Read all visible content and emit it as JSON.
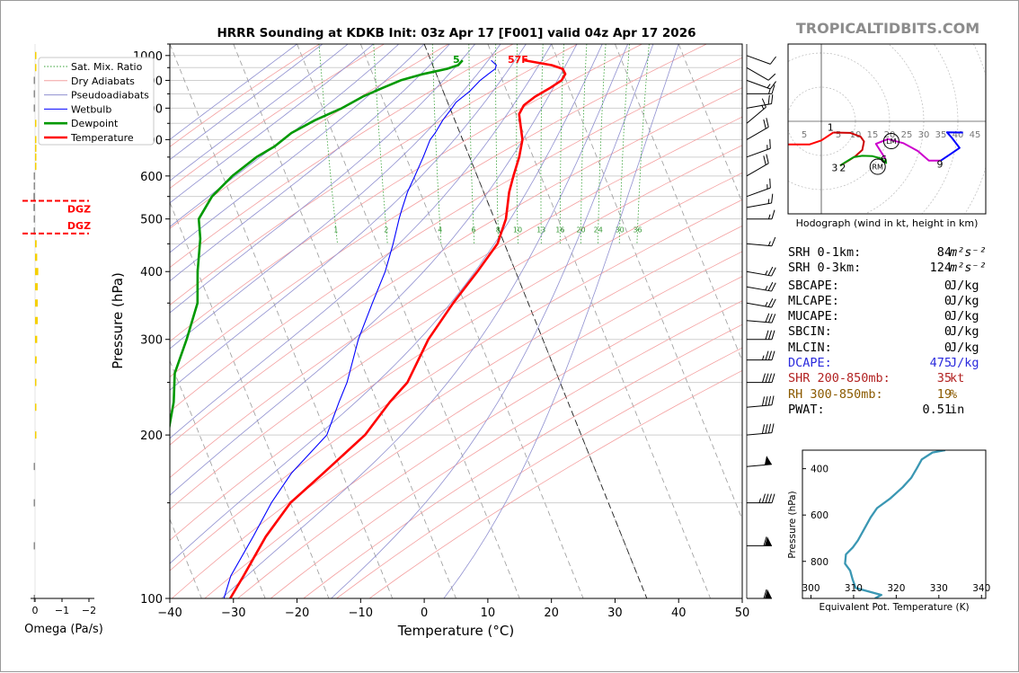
{
  "title": "HRRR Sounding at KDKB Init: 03z Apr 17 [F001] valid 04z Apr 17 2026",
  "watermark": "TROPICALTIDBITS.COM",
  "skewt": {
    "xlabel": "Temperature (°C)",
    "ylabel": "Pressure (hPa)",
    "xlim": [
      -40,
      50
    ],
    "ylim": [
      1050,
      100
    ],
    "x_ticks": [
      "−40",
      "−30",
      "−20",
      "−10",
      "0",
      "10",
      "20",
      "30",
      "40",
      "50"
    ],
    "y_ticks": [
      "100",
      "200",
      "300",
      "400",
      "500",
      "600",
      "700",
      "800",
      "900",
      "1000"
    ],
    "mixing_ratio_labels": [
      "1",
      "2",
      "4",
      "6",
      "8",
      "10",
      "13",
      "16",
      "20",
      "24",
      "30",
      "36"
    ],
    "surface_dewpoint_label": "5",
    "surface_temp_label": "57F",
    "legend": [
      "Sat. Mix. Ratio",
      "Dry Adiabats",
      "Pseudoadiabats",
      "Wetbulb",
      "Dewpoint",
      "Temperature"
    ],
    "colors": {
      "temperature": "#ff0000",
      "dewpoint": "#009900",
      "wetbulb": "#0000ff",
      "dry_adiabat": "#f4a0a0",
      "pseudoadiabat": "#9090d0",
      "mixing_ratio": "#33a033"
    }
  },
  "chart_data": [
    {
      "type": "line",
      "title": "HRRR Sounding at KDKB Init: 03z Apr 17 [F001] valid 04z Apr 17 2026",
      "xlabel": "Temperature (°C)",
      "ylabel": "Pressure (hPa)",
      "series": [
        {
          "name": "Temperature",
          "points": [
            [
              980,
              14.7
            ],
            [
              960,
              18.7
            ],
            [
              945,
              20.2
            ],
            [
              925,
              20.3
            ],
            [
              900,
              19.3
            ],
            [
              870,
              16.9
            ],
            [
              840,
              14.1
            ],
            [
              810,
              11.8
            ],
            [
              780,
              10.5
            ],
            [
              700,
              9.4
            ],
            [
              650,
              7.8
            ],
            [
              600,
              5.7
            ],
            [
              560,
              4.0
            ],
            [
              500,
              1.8
            ],
            [
              450,
              -1.1
            ],
            [
              400,
              -6.0
            ],
            [
              350,
              -11.8
            ],
            [
              300,
              -18.0
            ],
            [
              250,
              -24.0
            ],
            [
              230,
              -28.0
            ],
            [
              200,
              -34.0
            ],
            [
              170,
              -43.0
            ],
            [
              150,
              -50.0
            ],
            [
              130,
              -56.0
            ],
            [
              110,
              -62.0
            ],
            [
              100,
              -65.5
            ]
          ]
        },
        {
          "name": "Dewpoint",
          "points": [
            [
              980,
              5.0
            ],
            [
              960,
              4.0
            ],
            [
              945,
              2.0
            ],
            [
              925,
              -2.0
            ],
            [
              900,
              -6.0
            ],
            [
              870,
              -9.5
            ],
            [
              840,
              -13.0
            ],
            [
              800,
              -17.0
            ],
            [
              760,
              -22.0
            ],
            [
              720,
              -26.5
            ],
            [
              680,
              -30.0
            ],
            [
              650,
              -33.5
            ],
            [
              600,
              -38.5
            ],
            [
              550,
              -43.0
            ],
            [
              500,
              -46.5
            ],
            [
              460,
              -47.5
            ],
            [
              400,
              -50.0
            ],
            [
              350,
              -52.0
            ],
            [
              300,
              -56.0
            ],
            [
              260,
              -60.0
            ],
            [
              230,
              -62.0
            ],
            [
              200,
              -65.0
            ],
            [
              170,
              -70.0
            ],
            [
              150,
              -75.0
            ],
            [
              130,
              -80.0
            ],
            [
              120,
              -82.0
            ],
            [
              110,
              -81.0
            ],
            [
              100,
              -80.0
            ]
          ]
        },
        {
          "name": "Wetbulb",
          "points": [
            [
              980,
              9.5
            ],
            [
              960,
              10.0
            ],
            [
              945,
              9.6
            ],
            [
              925,
              8.2
            ],
            [
              900,
              6.5
            ],
            [
              860,
              4.2
            ],
            [
              820,
              1.3
            ],
            [
              800,
              0.3
            ],
            [
              760,
              -1.9
            ],
            [
              720,
              -3.9
            ],
            [
              700,
              -5.1
            ],
            [
              650,
              -7.3
            ],
            [
              600,
              -9.8
            ],
            [
              560,
              -12.0
            ],
            [
              520,
              -14.0
            ],
            [
              500,
              -15.0
            ],
            [
              450,
              -17.5
            ],
            [
              400,
              -20.5
            ],
            [
              350,
              -24.5
            ],
            [
              300,
              -29.0
            ],
            [
              250,
              -33.5
            ],
            [
              230,
              -36.0
            ],
            [
              200,
              -40.0
            ],
            [
              170,
              -48.0
            ],
            [
              150,
              -53.0
            ],
            [
              130,
              -58.0
            ],
            [
              110,
              -64.0
            ],
            [
              100,
              -66.5
            ]
          ]
        }
      ]
    },
    {
      "type": "bar",
      "xlabel": "Omega (Pa/s)",
      "x_ticks": [
        "0",
        "−1",
        "−2"
      ],
      "xlim": [
        0,
        -2
      ],
      "dgz_label": "DGZ",
      "dgz_top_label": "DGZ",
      "dgz_bottom_label": "DGZ",
      "dgz_pressures": [
        470,
        540
      ],
      "profile": [
        {
          "p": 100,
          "omega": 0.03
        },
        {
          "p": 125,
          "omega": 0.03
        },
        {
          "p": 150,
          "omega": 0.02
        },
        {
          "p": 175,
          "omega": 0.03
        },
        {
          "p": 200,
          "omega": -0.02
        },
        {
          "p": 225,
          "omega": -0.04
        },
        {
          "p": 250,
          "omega": -0.05
        },
        {
          "p": 275,
          "omega": -0.06
        },
        {
          "p": 300,
          "omega": -0.08
        },
        {
          "p": 325,
          "omega": -0.1
        },
        {
          "p": 350,
          "omega": -0.1
        },
        {
          "p": 375,
          "omega": -0.1
        },
        {
          "p": 400,
          "omega": -0.12
        },
        {
          "p": 425,
          "omega": -0.08
        },
        {
          "p": 450,
          "omega": -0.06
        },
        {
          "p": 475,
          "omega": 0.02
        },
        {
          "p": 500,
          "omega": 0.04
        },
        {
          "p": 525,
          "omega": 0.06
        },
        {
          "p": 550,
          "omega": 0.06
        },
        {
          "p": 575,
          "omega": 0.04
        },
        {
          "p": 600,
          "omega": 0.03
        },
        {
          "p": 625,
          "omega": -0.01
        },
        {
          "p": 650,
          "omega": -0.02
        },
        {
          "p": 675,
          "omega": -0.03
        },
        {
          "p": 700,
          "omega": -0.02
        },
        {
          "p": 750,
          "omega": -0.01
        },
        {
          "p": 800,
          "omega": 0.01
        },
        {
          "p": 850,
          "omega": 0.02
        },
        {
          "p": 900,
          "omega": 0.02
        },
        {
          "p": 950,
          "omega": -0.01
        },
        {
          "p": 1000,
          "omega": -0.01
        }
      ]
    },
    {
      "type": "line",
      "title": "",
      "xlabel": "Equivalent Pot. Temperature (K)",
      "ylabel": "Pressure (hPa)",
      "xlim": [
        298,
        341
      ],
      "ylim": [
        960,
        320
      ],
      "x_ticks": [
        "300",
        "310",
        "320",
        "330",
        "340"
      ],
      "y_ticks": [
        "400",
        "600",
        "800"
      ],
      "series": [
        {
          "name": "",
          "points": [
            [
              315,
              960
            ],
            [
              316.5,
              945
            ],
            [
              310.5,
              915
            ],
            [
              309.8,
              880
            ],
            [
              309.2,
              840
            ],
            [
              308,
              810
            ],
            [
              308.2,
              770
            ],
            [
              309.8,
              740
            ],
            [
              311,
              710
            ],
            [
              312.5,
              660
            ],
            [
              314,
              610
            ],
            [
              315.5,
              570
            ],
            [
              318.5,
              530
            ],
            [
              321.5,
              480
            ],
            [
              323.5,
              440
            ],
            [
              324.8,
              400
            ],
            [
              326,
              360
            ],
            [
              328.5,
              330
            ],
            [
              331.5,
              320
            ]
          ]
        }
      ]
    },
    {
      "type": "line",
      "xlabel": "Hodograph (wind in kt, height in km)",
      "ring_labels": [
        "5",
        "5",
        "10",
        "15",
        "20",
        "25",
        "30",
        "35",
        "40",
        "45"
      ],
      "height_labels": [
        "1",
        "2",
        "3",
        "6",
        "9"
      ],
      "storm_motion_labels": [
        "LM",
        "RM"
      ],
      "series": [
        {
          "name": "0-1km",
          "color": "#ff0000",
          "points": [
            [
              -16,
              -7.5
            ],
            [
              -10.5,
              -6.8
            ],
            [
              -3.5,
              -6.8
            ],
            [
              0,
              -5.6
            ],
            [
              3.5,
              -3.3
            ]
          ]
        },
        {
          "name": "1-3km",
          "color": "#cc0000",
          "points": [
            [
              3.5,
              -3.3
            ],
            [
              8.5,
              -3.4
            ],
            [
              11.5,
              -4.5
            ],
            [
              12.5,
              -5.9
            ],
            [
              12,
              -8.4
            ],
            [
              10,
              -10.2
            ],
            [
              8,
              -11.5
            ],
            [
              5.5,
              -13
            ]
          ]
        },
        {
          "name": "3-6km",
          "color": "#009900",
          "points": [
            [
              5.5,
              -13
            ],
            [
              7,
              -12
            ],
            [
              9.5,
              -10.5
            ],
            [
              12,
              -10.1
            ],
            [
              15,
              -10.2
            ],
            [
              17.5,
              -10.9
            ],
            [
              19,
              -12.2
            ],
            [
              18.8,
              -11
            ]
          ]
        },
        {
          "name": "6-9km",
          "color": "#cc00cc",
          "points": [
            [
              18.8,
              -11
            ],
            [
              16,
              -6.6
            ],
            [
              19.5,
              -5.2
            ],
            [
              24,
              -6.4
            ],
            [
              28.3,
              -8.7
            ],
            [
              31.5,
              -11.5
            ],
            [
              35,
              -11.5
            ]
          ]
        },
        {
          "name": "9+km",
          "color": "#0000ff",
          "points": [
            [
              35,
              -11.5
            ],
            [
              38,
              -9.5
            ],
            [
              40.5,
              -7.8
            ],
            [
              38.3,
              -4.9
            ],
            [
              36.8,
              -3.2
            ],
            [
              41.5,
              -3.3
            ]
          ]
        }
      ],
      "storm_motion": {
        "LM": [
          20.5,
          -5.8
        ],
        "RM": [
          16.5,
          -13.3
        ]
      }
    },
    {
      "type": "bar",
      "xlabel": "",
      "barbs": [
        {
          "p": 100,
          "spd": 60,
          "dir": 270
        },
        {
          "p": 125,
          "spd": 58,
          "dir": 270
        },
        {
          "p": 150,
          "spd": 45,
          "dir": 270
        },
        {
          "p": 175,
          "spd": 48,
          "dir": 265
        },
        {
          "p": 200,
          "spd": 42,
          "dir": 265
        },
        {
          "p": 225,
          "spd": 40,
          "dir": 265
        },
        {
          "p": 250,
          "spd": 38,
          "dir": 270
        },
        {
          "p": 275,
          "spd": 36,
          "dir": 270
        },
        {
          "p": 300,
          "spd": 32,
          "dir": 270
        },
        {
          "p": 325,
          "spd": 30,
          "dir": 275
        },
        {
          "p": 350,
          "spd": 25,
          "dir": 280
        },
        {
          "p": 375,
          "spd": 25,
          "dir": 280
        },
        {
          "p": 400,
          "spd": 25,
          "dir": 280
        },
        {
          "p": 450,
          "spd": 15,
          "dir": 275
        },
        {
          "p": 500,
          "spd": 15,
          "dir": 270
        },
        {
          "p": 525,
          "spd": 15,
          "dir": 260
        },
        {
          "p": 550,
          "spd": 15,
          "dir": 250
        },
        {
          "p": 600,
          "spd": 20,
          "dir": 240
        },
        {
          "p": 650,
          "spd": 15,
          "dir": 250
        },
        {
          "p": 700,
          "spd": 18,
          "dir": 240
        },
        {
          "p": 750,
          "spd": 15,
          "dir": 230
        },
        {
          "p": 800,
          "spd": 18,
          "dir": 260
        },
        {
          "p": 850,
          "spd": 15,
          "dir": 270
        },
        {
          "p": 900,
          "spd": 15,
          "dir": 290
        },
        {
          "p": 950,
          "spd": 10,
          "dir": 300
        },
        {
          "p": 1000,
          "spd": 10,
          "dir": 290
        }
      ]
    }
  ],
  "hodograph": {
    "caption": "Hodograph (wind in kt, height in km)"
  },
  "theta_e": {
    "xlabel": "Equivalent Pot. Temperature (K)",
    "ylabel": "Pressure (hPa)"
  },
  "omega": {
    "xlabel": "Omega (Pa/s)"
  },
  "params": [
    {
      "label": "SRH 0-1km:",
      "value": "84",
      "unit": "m²s⁻²",
      "color": "#000000"
    },
    {
      "label": "SRH 0-3km:",
      "value": "124",
      "unit": "m²s⁻²",
      "color": "#000000"
    },
    {
      "label": "SBCAPE:",
      "value": "0",
      "unit": "J/kg",
      "color": "#000000"
    },
    {
      "label": "MLCAPE:",
      "value": "0",
      "unit": "J/kg",
      "color": "#000000"
    },
    {
      "label": "MUCAPE:",
      "value": "0",
      "unit": "J/kg",
      "color": "#000000"
    },
    {
      "label": "SBCIN:",
      "value": "0",
      "unit": "J/kg",
      "color": "#000000"
    },
    {
      "label": "MLCIN:",
      "value": "0",
      "unit": "J/kg",
      "color": "#000000"
    },
    {
      "label": "DCAPE:",
      "value": "475",
      "unit": "J/kg",
      "color": "#2b2bdd"
    },
    {
      "label": "SHR 200-850mb:",
      "value": "35",
      "unit": "kt",
      "color": "#b22222"
    },
    {
      "label": "RH 300-850mb:",
      "value": "19",
      "unit": "%",
      "color": "#8b5a00"
    },
    {
      "label": "PWAT:",
      "value": "0.51",
      "unit": "in",
      "color": "#000000"
    }
  ]
}
